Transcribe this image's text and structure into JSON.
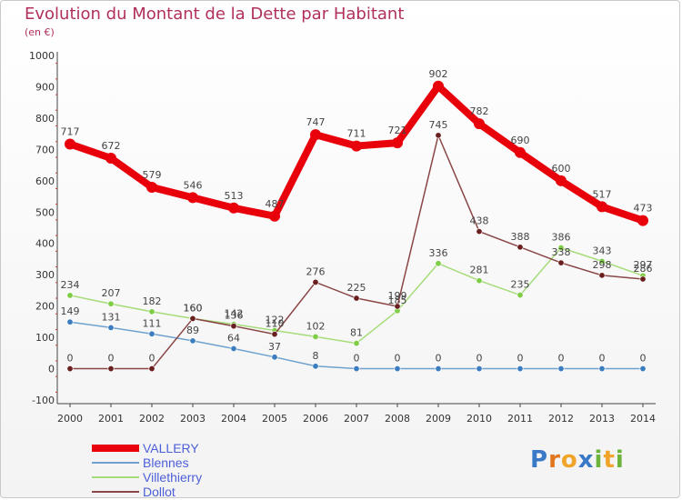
{
  "title": "Evolution du Montant de la Dette par Habitant",
  "subtitle": "(en €)",
  "logo": {
    "text": "Proxiti",
    "colors": [
      "#3a78c8",
      "#e2761f",
      "#f1a42a",
      "#3a78c8",
      "#6cb33c",
      "#f1a42a",
      "#6cb33c"
    ]
  },
  "chart_data": {
    "type": "line",
    "title": "Evolution du Montant de la Dette par Habitant",
    "ylabel": "(en €)",
    "xlabel": "",
    "ylim": [
      -100,
      1000
    ],
    "yticks": [
      -100,
      0,
      100,
      200,
      300,
      400,
      500,
      600,
      700,
      800,
      900,
      1000
    ],
    "grid": false,
    "legend_position": "bottom-left",
    "x": [
      "2000",
      "2001",
      "2002",
      "2003",
      "2004",
      "2005",
      "2006",
      "2007",
      "2008",
      "2009",
      "2010",
      "2011",
      "2012",
      "2013",
      "2014"
    ],
    "series": [
      {
        "name": "VALLERY",
        "color": "#e8000b",
        "marker_color": "#e8000b",
        "emphasis": true,
        "values": [
          717,
          672,
          579,
          546,
          513,
          487,
          747,
          711,
          721,
          902,
          782,
          690,
          600,
          517,
          473
        ],
        "labels": [
          "717",
          "672",
          "579",
          "546",
          "513",
          "487",
          "747",
          "711",
          "721",
          "902",
          "782",
          "690",
          "600",
          "517",
          "473"
        ]
      },
      {
        "name": "Blennes",
        "color": "#6fa1cf",
        "marker_color": "#3b7dbf",
        "values": [
          149,
          131,
          111,
          89,
          64,
          37,
          8,
          0,
          0,
          0,
          0,
          0,
          0,
          0,
          0
        ],
        "labels": [
          "149",
          "131",
          "111",
          "89",
          "64",
          "37",
          "8",
          "0",
          "0",
          "0",
          "0",
          "0",
          "0",
          "0",
          "0"
        ]
      },
      {
        "name": "Villethierry",
        "color": "#a6dc7a",
        "marker_color": "#7fcd45",
        "values": [
          234,
          207,
          182,
          160,
          142,
          122,
          102,
          81,
          185,
          336,
          281,
          235,
          386,
          343,
          297
        ],
        "labels": [
          "234",
          "207",
          "182",
          "160",
          "142",
          "122",
          "102",
          "81",
          "185",
          "336",
          "281",
          "235",
          "386",
          "343",
          "297"
        ]
      },
      {
        "name": "Dollot",
        "color": "#8a4646",
        "marker_color": "#6a1f1f",
        "values": [
          0,
          0,
          0,
          160,
          136,
          110,
          276,
          225,
          199,
          745,
          438,
          388,
          338,
          298,
          286
        ],
        "labels": [
          "0",
          "0",
          "0",
          "160",
          "136",
          "110",
          "276",
          "225",
          "199",
          "745",
          "438",
          "388",
          "338",
          "298",
          "286"
        ]
      }
    ]
  }
}
